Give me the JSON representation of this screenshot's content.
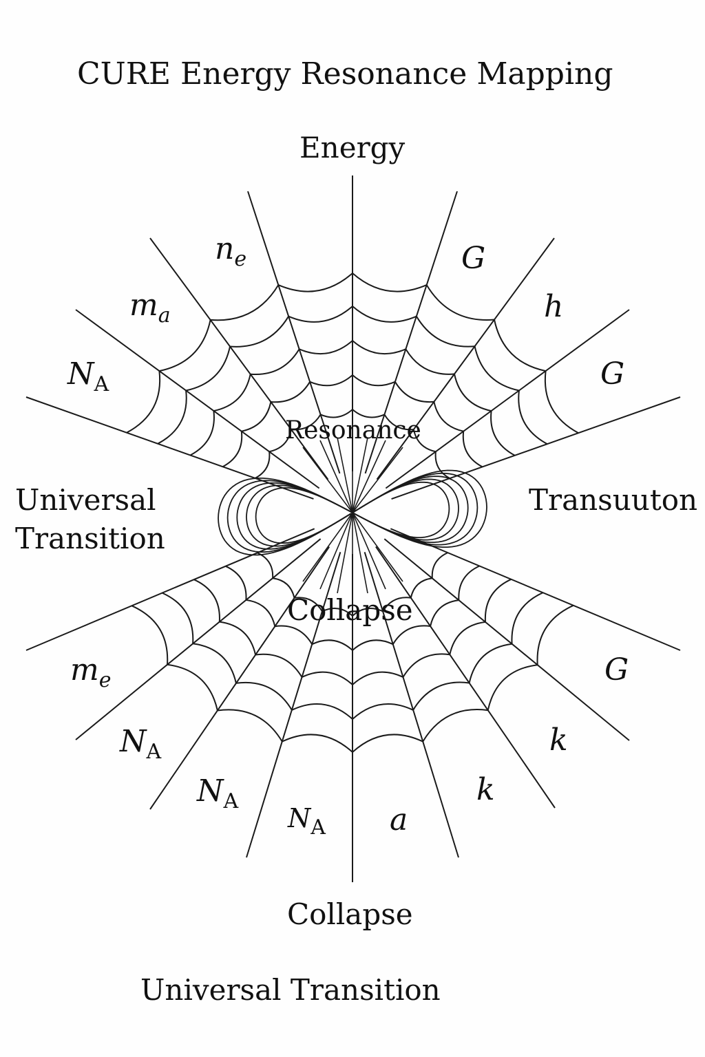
{
  "title": "CURE Energy Resonance Mapping",
  "labels": {
    "top": "Energy",
    "resonance": "Resonance",
    "left_line1": "Universal",
    "left_line2": "Transition",
    "right": "Transuuton",
    "collapse_center": "Collapse",
    "collapse_bottom": "Collapse",
    "universal_bottom": "Universal Transition"
  },
  "symbols": {
    "n_e": {
      "base": "n",
      "sub": "e"
    },
    "m_a": {
      "base": "m",
      "sub": "a"
    },
    "N_A_left": {
      "base": "N",
      "sub": "A"
    },
    "G_top": {
      "base": "G",
      "sub": ""
    },
    "h": {
      "base": "h",
      "sub": ""
    },
    "G_right": {
      "base": "G",
      "sub": ""
    },
    "m_e": {
      "base": "m",
      "sub": "e"
    },
    "N_A_1": {
      "base": "N",
      "sub": "A"
    },
    "N_A_2": {
      "base": "N",
      "sub": "A"
    },
    "N_A_3": {
      "base": "N",
      "sub": "A"
    },
    "a": {
      "base": "a",
      "sub": ""
    },
    "k_1": {
      "base": "k",
      "sub": ""
    },
    "k_2": {
      "base": "k",
      "sub": ""
    },
    "G_bottom": {
      "base": "G",
      "sub": ""
    }
  },
  "stroke_color": "#1a1a1a"
}
